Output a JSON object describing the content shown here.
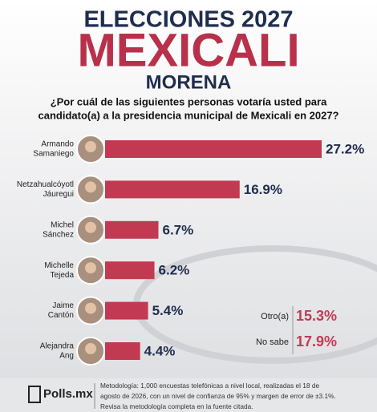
{
  "chart_data": {
    "type": "bar",
    "title": "ELECCIONES 2027",
    "subtitle": "MEXICALI",
    "party": "MORENA",
    "question": [
      "¿Por cuál de las siguientes personas votaría usted para",
      "candidato(a) a la presidencia municipal de Mexicali en 2027?"
    ],
    "categories": [
      [
        "Armando",
        "Samaniego"
      ],
      [
        "Netzahualcóyotl",
        "Jáuregui"
      ],
      [
        "Michel",
        "Sánchez"
      ],
      [
        "Michelle",
        "Tejeda"
      ],
      [
        "Jaime",
        "Cantón"
      ],
      [
        "Alejandra",
        "Ang"
      ]
    ],
    "values": [
      27.2,
      16.9,
      6.7,
      6.2,
      5.4,
      4.4
    ],
    "value_labels": [
      "27.2%",
      "16.9%",
      "6.7%",
      "6.2%",
      "5.4%",
      "4.4%"
    ],
    "color": "#c23a52",
    "extra_categories": [
      "Otro(a)",
      "No sabe"
    ],
    "extra_values": [
      15.3,
      17.9
    ],
    "extra_value_labels": [
      "15.3%",
      "17.9%"
    ],
    "source": "Polls.mx",
    "methodology": [
      "Metodología: 1,000 encuestas telefónicas a nivel local, realizadas el 18 de",
      "agosto de 2026, con un nivel de confianza de 95% y margen de error de ±3.1%.",
      "Revisa la metodología completa en la fuente citada."
    ]
  }
}
